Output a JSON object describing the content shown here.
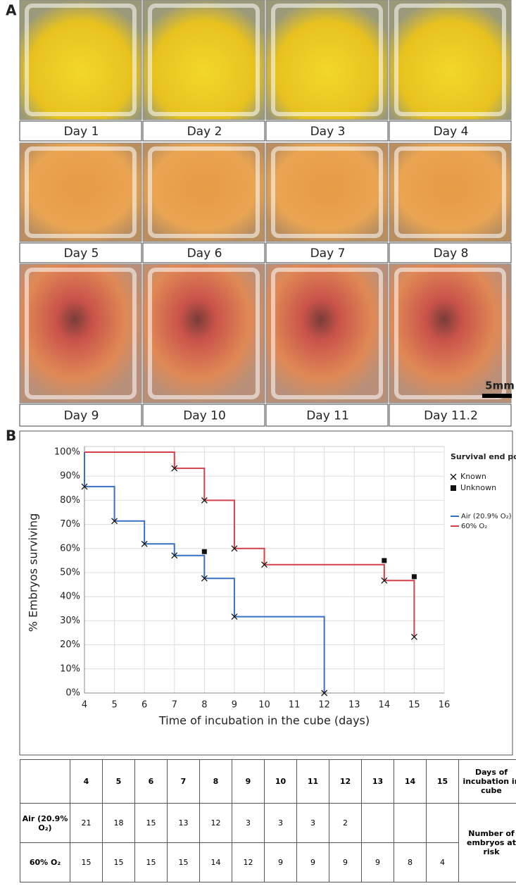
{
  "panel_a": {
    "label": "A",
    "captions": [
      "Day 1",
      "Day 2",
      "Day 3",
      "Day 4",
      "Day 5",
      "Day 6",
      "Day 7",
      "Day 8",
      "Day 9",
      "Day 10",
      "Day 11",
      "Day 11.2"
    ],
    "scale_bar": "5mm"
  },
  "panel_b": {
    "label": "B"
  },
  "chart_data": {
    "type": "step",
    "x_label": "Time of incubation in the cube (days)",
    "y_label": "% Embryos surviving",
    "xlim": [
      4,
      16
    ],
    "xticks": [
      4,
      5,
      6,
      7,
      8,
      9,
      10,
      11,
      12,
      13,
      14,
      15,
      16
    ],
    "ylim": [
      0,
      100
    ],
    "yticks": [
      {
        "value": 0,
        "label": "0%"
      },
      {
        "value": 10,
        "label": "10%"
      },
      {
        "value": 20,
        "label": "20%"
      },
      {
        "value": 30,
        "label": "30%"
      },
      {
        "value": 40,
        "label": "40%"
      },
      {
        "value": 50,
        "label": "50%"
      },
      {
        "value": 60,
        "label": "60%"
      },
      {
        "value": 70,
        "label": "70%"
      },
      {
        "value": 80,
        "label": "80%"
      },
      {
        "value": 90,
        "label": "90%"
      },
      {
        "value": 100,
        "label": "100%"
      }
    ],
    "grid": true,
    "legend_title": "Survival end point",
    "legend_markers": [
      "Known",
      "Unknown"
    ],
    "legend_position": "right",
    "series": [
      {
        "name": "Air (20.9% O₂)",
        "color": "#3a6fc4",
        "x": [
          4,
          4,
          5,
          6,
          7,
          8,
          9,
          12
        ],
        "values": [
          100,
          85.7,
          71.4,
          61.9,
          57.1,
          47.6,
          31.7,
          0
        ],
        "censored_x": [
          8
        ],
        "censored_values": [
          58.7
        ]
      },
      {
        "name": "60% O₂",
        "color": "#d2404a",
        "x": [
          4,
          7,
          8,
          9,
          10,
          14,
          15
        ],
        "values": [
          100,
          93.3,
          80,
          60,
          53.3,
          46.7,
          23.3
        ],
        "censored_x": [
          14,
          15
        ],
        "censored_values": [
          55,
          48.3
        ]
      }
    ]
  },
  "table": {
    "header": [
      null,
      "4",
      "5",
      "6",
      "7",
      "8",
      "9",
      "10",
      "11",
      "12",
      "13",
      "14",
      "15",
      "Days of incubation in cube"
    ],
    "rows": [
      [
        "Air (20.9% O₂)",
        "21",
        "18",
        "15",
        "13",
        "12",
        "3",
        "3",
        "3",
        "2",
        null,
        null,
        null
      ],
      [
        "60% O₂",
        "15",
        "15",
        "15",
        "15",
        "14",
        "12",
        "9",
        "9",
        "9",
        "9",
        "8",
        "4"
      ]
    ],
    "side_label": "Number of embryos at risk"
  }
}
